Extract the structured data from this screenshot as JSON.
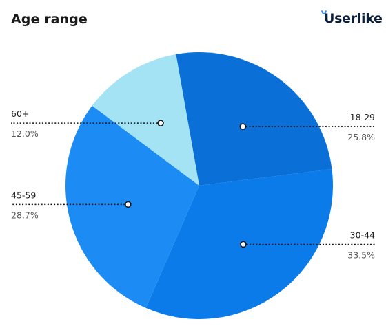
{
  "header": {
    "title": "Age range",
    "brand": "Userlike"
  },
  "chart_data": {
    "type": "pie",
    "slices": [
      {
        "label": "18-29",
        "value": 25.8,
        "value_label": "25.8%",
        "color": "#0a6fd6"
      },
      {
        "label": "30-44",
        "value": 33.5,
        "value_label": "33.5%",
        "color": "#0a7be8"
      },
      {
        "label": "45-59",
        "value": 28.7,
        "value_label": "28.7%",
        "color": "#1c8cf4"
      },
      {
        "label": "60+",
        "value": 12.0,
        "value_label": "12.0%",
        "color": "#a4e3f4"
      }
    ],
    "start_angle_degrees_from_north": -10,
    "direction": "clockwise",
    "legend": "none",
    "label_style": "leader-lines"
  },
  "colors": {
    "title": "#1a1a1a",
    "brand_text": "#0b1f3a",
    "brand_accent": "#1e90ff",
    "label_text": "#1f1f1f",
    "value_text": "#555555",
    "leader_line": "#111111"
  }
}
